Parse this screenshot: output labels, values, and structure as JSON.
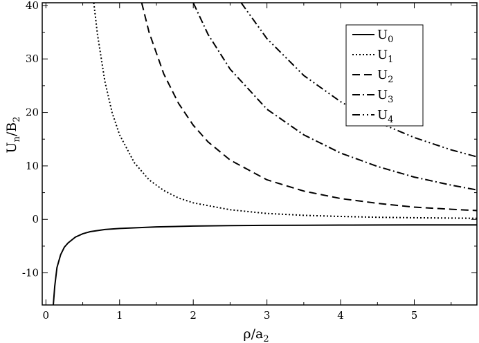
{
  "chart_data": {
    "type": "line",
    "xlabel": "ρ/a",
    "xlabel_sub": "2",
    "ylabel": "U",
    "ylabel_sub1": "n",
    "ylabel_mid": "/B",
    "ylabel_sub2": "2",
    "xlim": [
      -0.05,
      5.85
    ],
    "ylim": [
      -16,
      40.5
    ],
    "xticks": [
      0,
      1,
      2,
      3,
      4,
      5
    ],
    "yticks": [
      -10,
      0,
      10,
      20,
      30,
      40
    ],
    "legend_position": "top-right",
    "grid": false,
    "series": [
      {
        "name": "U",
        "sub": "0",
        "dash": "none",
        "points": [
          [
            0.1,
            -16.0
          ],
          [
            0.12,
            -12.5
          ],
          [
            0.15,
            -9.0
          ],
          [
            0.2,
            -6.6
          ],
          [
            0.25,
            -5.2
          ],
          [
            0.3,
            -4.4
          ],
          [
            0.4,
            -3.3
          ],
          [
            0.5,
            -2.7
          ],
          [
            0.6,
            -2.3
          ],
          [
            0.8,
            -1.9
          ],
          [
            1.0,
            -1.7
          ],
          [
            1.5,
            -1.4
          ],
          [
            2.0,
            -1.25
          ],
          [
            2.5,
            -1.17
          ],
          [
            3.0,
            -1.12
          ],
          [
            3.5,
            -1.09
          ],
          [
            4.0,
            -1.07
          ],
          [
            4.5,
            -1.06
          ],
          [
            5.0,
            -1.04
          ],
          [
            5.85,
            -1.03
          ]
        ]
      },
      {
        "name": "U",
        "sub": "1",
        "dash": "2,3",
        "points": [
          [
            0.65,
            40.5
          ],
          [
            0.7,
            34.6
          ],
          [
            0.8,
            25.8
          ],
          [
            0.9,
            19.9
          ],
          [
            1.0,
            15.8
          ],
          [
            1.2,
            10.6
          ],
          [
            1.4,
            7.4
          ],
          [
            1.6,
            5.4
          ],
          [
            1.8,
            4.0
          ],
          [
            2.0,
            3.1
          ],
          [
            2.5,
            1.8
          ],
          [
            3.0,
            1.1
          ],
          [
            3.5,
            0.75
          ],
          [
            4.0,
            0.55
          ],
          [
            4.5,
            0.4
          ],
          [
            5.0,
            0.3
          ],
          [
            5.85,
            0.2
          ]
        ]
      },
      {
        "name": "U",
        "sub": "2",
        "dash": "11,6",
        "points": [
          [
            1.3,
            40.5
          ],
          [
            1.4,
            35.0
          ],
          [
            1.6,
            27.2
          ],
          [
            1.8,
            21.7
          ],
          [
            2.0,
            17.6
          ],
          [
            2.2,
            14.5
          ],
          [
            2.5,
            11.1
          ],
          [
            3.0,
            7.4
          ],
          [
            3.5,
            5.3
          ],
          [
            4.0,
            3.9
          ],
          [
            4.5,
            3.0
          ],
          [
            5.0,
            2.3
          ],
          [
            5.5,
            1.9
          ],
          [
            5.85,
            1.65
          ]
        ]
      },
      {
        "name": "U",
        "sub": "3",
        "dash": "11,4,2,4",
        "points": [
          [
            2.0,
            40.5
          ],
          [
            2.2,
            34.6
          ],
          [
            2.5,
            28.1
          ],
          [
            3.0,
            20.6
          ],
          [
            3.5,
            15.8
          ],
          [
            4.0,
            12.4
          ],
          [
            4.5,
            9.9
          ],
          [
            5.0,
            7.9
          ],
          [
            5.5,
            6.4
          ],
          [
            5.85,
            5.5
          ]
        ]
      },
      {
        "name": "U",
        "sub": "4",
        "dash": "11,4,2,4,2,4",
        "points": [
          [
            2.65,
            40.5
          ],
          [
            3.0,
            33.8
          ],
          [
            3.5,
            26.9
          ],
          [
            4.0,
            22.0
          ],
          [
            4.5,
            18.2
          ],
          [
            5.0,
            15.3
          ],
          [
            5.5,
            13.0
          ],
          [
            5.85,
            11.7
          ]
        ]
      }
    ]
  }
}
